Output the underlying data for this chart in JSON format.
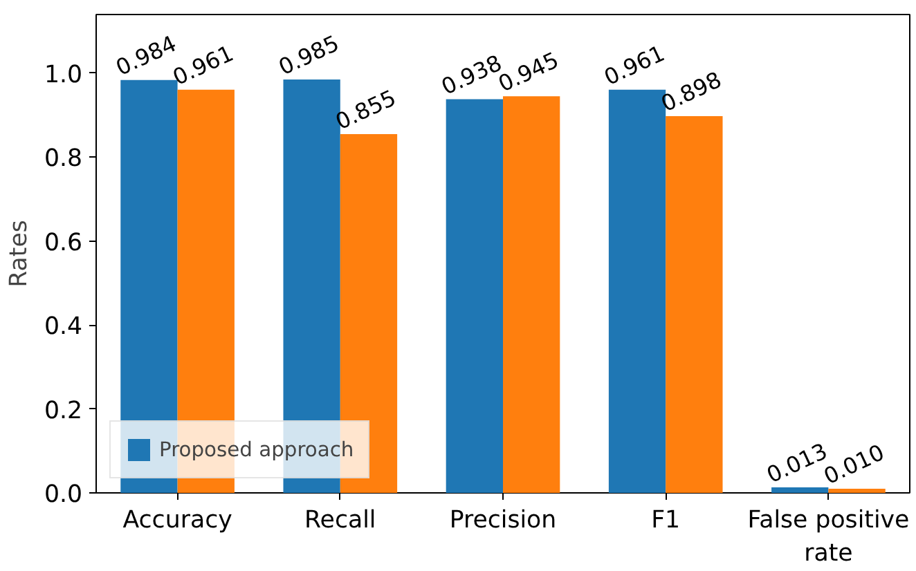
{
  "chart_data": {
    "type": "bar",
    "ylabel": "Rates",
    "categories": [
      "Accuracy",
      "Recall",
      "Precision",
      "F1",
      "False positive\nrate"
    ],
    "series": [
      {
        "name": "Proposed approach",
        "color": "#1f77b4",
        "values": [
          0.984,
          0.985,
          0.938,
          0.961,
          0.013
        ],
        "value_labels": [
          "0.984",
          "0.985",
          "0.938",
          "0.961",
          "0.013"
        ]
      },
      {
        "color": "#ff7f0e",
        "values": [
          0.961,
          0.855,
          0.945,
          0.898,
          0.01
        ],
        "value_labels": [
          "0.961",
          "0.855",
          "0.945",
          "0.898",
          "0.010"
        ]
      }
    ],
    "ylim": [
      0,
      1.14
    ],
    "yticks": [
      {
        "value": 0,
        "label": "0.0"
      },
      {
        "value": 0.2,
        "label": "0.2"
      },
      {
        "value": 0.4,
        "label": "0.4"
      },
      {
        "value": 0.6,
        "label": "0.6"
      },
      {
        "value": 0.8,
        "label": "0.8"
      },
      {
        "value": 1.0,
        "label": "1.0"
      }
    ],
    "grid": false,
    "legend": "bottom left"
  }
}
